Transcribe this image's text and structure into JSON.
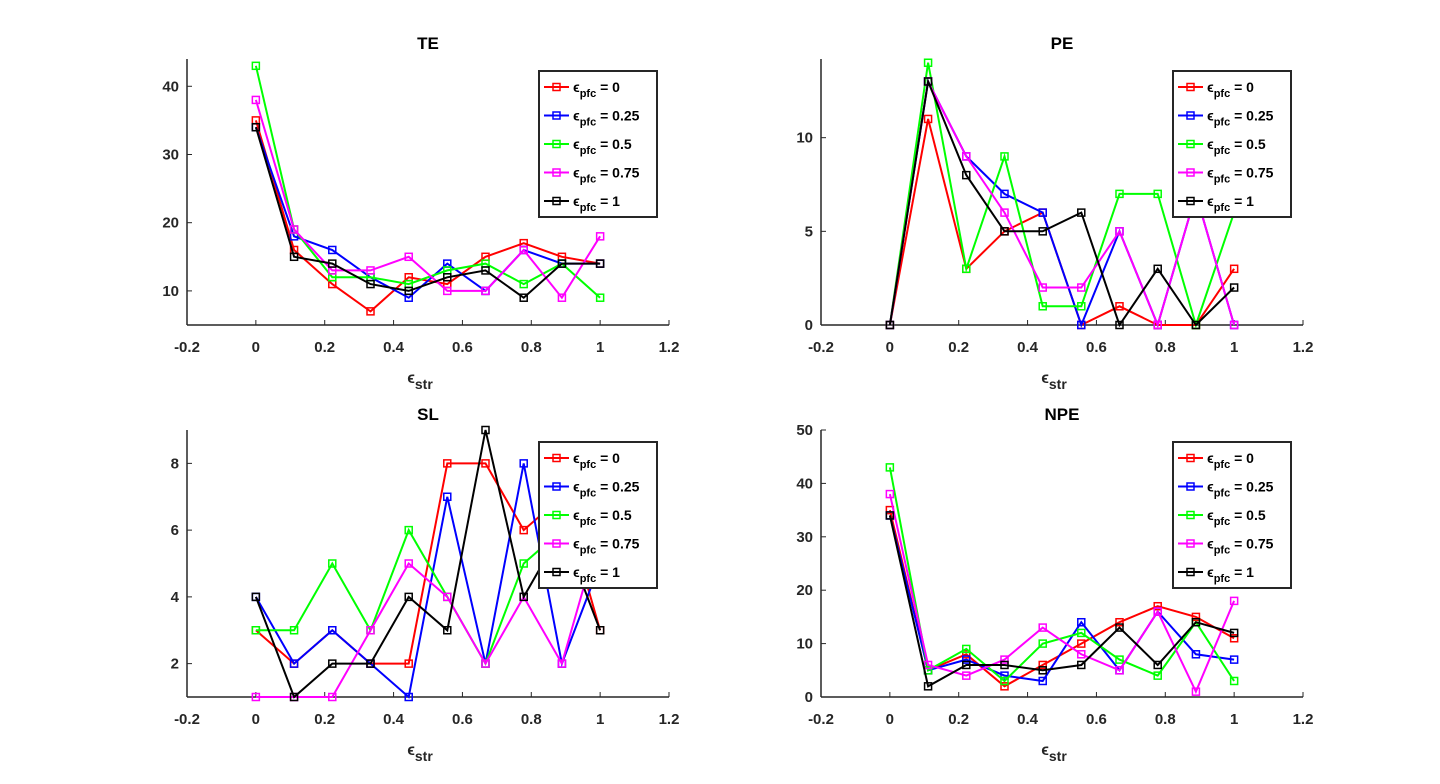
{
  "chart_data": [
    {
      "type": "line",
      "title": "TE",
      "xlabel_symbol": "ϵ",
      "xlabel_sub": "str",
      "xlim": [
        -0.2,
        1.2
      ],
      "ylim": [
        5,
        44
      ],
      "xticks": [
        "-0.2",
        "0",
        "0.2",
        "0.4",
        "0.6",
        "0.8",
        "1",
        "1.2"
      ],
      "xtick_values": [
        -0.2,
        0,
        0.2,
        0.4,
        0.6,
        0.8,
        1,
        1.2
      ],
      "yticks": [
        "10",
        "20",
        "30",
        "40"
      ],
      "ytick_values": [
        10,
        20,
        30,
        40
      ],
      "grid": false,
      "legend_position": "top-right",
      "x": [
        0,
        0.111,
        0.222,
        0.333,
        0.444,
        0.556,
        0.667,
        0.778,
        0.889,
        1
      ],
      "series": [
        {
          "name": "ϵpfc = 0",
          "symbol": "ϵ",
          "sub": "pfc",
          "suffix": " = 0",
          "color": "#ff0000",
          "values": [
            35,
            16,
            11,
            7,
            12,
            11,
            15,
            17,
            15,
            14
          ]
        },
        {
          "name": "ϵpfc = 0.25",
          "symbol": "ϵ",
          "sub": "pfc",
          "suffix": " = 0.25",
          "color": "#0000ff",
          "values": [
            34,
            18,
            16,
            12,
            9,
            14,
            10,
            16,
            14,
            14
          ]
        },
        {
          "name": "ϵpfc = 0.5",
          "symbol": "ϵ",
          "sub": "pfc",
          "suffix": " = 0.5",
          "color": "#00ff00",
          "values": [
            43,
            19,
            12,
            12,
            11,
            13,
            14,
            11,
            14,
            9
          ]
        },
        {
          "name": "ϵpfc = 0.75",
          "symbol": "ϵ",
          "sub": "pfc",
          "suffix": " = 0.75",
          "color": "#ff00ff",
          "values": [
            38,
            19,
            13,
            13,
            15,
            10,
            10,
            16,
            9,
            18
          ]
        },
        {
          "name": "ϵpfc = 1",
          "symbol": "ϵ",
          "sub": "pfc",
          "suffix": " = 1",
          "color": "#000000",
          "values": [
            34,
            15,
            14,
            11,
            10,
            12,
            13,
            9,
            14,
            14
          ]
        }
      ]
    },
    {
      "type": "line",
      "title": "PE",
      "xlabel_symbol": "ϵ",
      "xlabel_sub": "str",
      "xlim": [
        -0.2,
        1.2
      ],
      "ylim": [
        0,
        14.2
      ],
      "xticks": [
        "-0.2",
        "0",
        "0.2",
        "0.4",
        "0.6",
        "0.8",
        "1",
        "1.2"
      ],
      "xtick_values": [
        -0.2,
        0,
        0.2,
        0.4,
        0.6,
        0.8,
        1,
        1.2
      ],
      "yticks": [
        "0",
        "5",
        "10"
      ],
      "ytick_values": [
        0,
        5,
        10
      ],
      "grid": false,
      "legend_position": "top-right",
      "x": [
        0,
        0.111,
        0.222,
        0.333,
        0.444,
        0.556,
        0.667,
        0.778,
        0.889,
        1
      ],
      "series": [
        {
          "name": "ϵpfc = 0",
          "symbol": "ϵ",
          "sub": "pfc",
          "suffix": " = 0",
          "color": "#ff0000",
          "values": [
            0,
            11,
            3,
            5,
            6,
            0,
            1,
            0,
            0,
            3
          ]
        },
        {
          "name": "ϵpfc = 0.25",
          "symbol": "ϵ",
          "sub": "pfc",
          "suffix": " = 0.25",
          "color": "#0000ff",
          "values": [
            0,
            13,
            9,
            7,
            6,
            0,
            5,
            0,
            7,
            0
          ]
        },
        {
          "name": "ϵpfc = 0.5",
          "symbol": "ϵ",
          "sub": "pfc",
          "suffix": " = 0.5",
          "color": "#00ff00",
          "values": [
            0,
            14,
            3,
            9,
            1,
            1,
            7,
            7,
            0,
            6
          ]
        },
        {
          "name": "ϵpfc = 0.75",
          "symbol": "ϵ",
          "sub": "pfc",
          "suffix": " = 0.75",
          "color": "#ff00ff",
          "values": [
            0,
            13,
            9,
            6,
            2,
            2,
            5,
            0,
            7,
            0
          ]
        },
        {
          "name": "ϵpfc = 1",
          "symbol": "ϵ",
          "sub": "pfc",
          "suffix": " = 1",
          "color": "#000000",
          "values": [
            0,
            13,
            8,
            5,
            5,
            6,
            0,
            3,
            0,
            2
          ]
        }
      ]
    },
    {
      "type": "line",
      "title": "SL",
      "xlabel_symbol": "ϵ",
      "xlabel_sub": "str",
      "xlim": [
        -0.2,
        1.2
      ],
      "ylim": [
        1,
        9
      ],
      "xticks": [
        "-0.2",
        "0",
        "0.2",
        "0.4",
        "0.6",
        "0.8",
        "1",
        "1.2"
      ],
      "xtick_values": [
        -0.2,
        0,
        0.2,
        0.4,
        0.6,
        0.8,
        1,
        1.2
      ],
      "yticks": [
        "2",
        "4",
        "6",
        "8"
      ],
      "ytick_values": [
        2,
        4,
        6,
        8
      ],
      "grid": false,
      "legend_position": "top-right",
      "x": [
        0,
        0.111,
        0.222,
        0.333,
        0.444,
        0.556,
        0.667,
        0.778,
        0.889,
        1
      ],
      "series": [
        {
          "name": "ϵpfc = 0",
          "symbol": "ϵ",
          "sub": "pfc",
          "suffix": " = 0",
          "color": "#ff0000",
          "values": [
            3,
            2,
            3,
            2,
            2,
            8,
            8,
            6,
            7,
            3
          ]
        },
        {
          "name": "ϵpfc = 0.25",
          "symbol": "ϵ",
          "sub": "pfc",
          "suffix": " = 0.25",
          "color": "#0000ff",
          "values": [
            4,
            2,
            3,
            2,
            1,
            7,
            2,
            8,
            2,
            5
          ]
        },
        {
          "name": "ϵpfc = 0.5",
          "symbol": "ϵ",
          "sub": "pfc",
          "suffix": " = 0.5",
          "color": "#00ff00",
          "values": [
            3,
            3,
            5,
            3,
            6,
            4,
            2,
            5,
            6,
            5
          ]
        },
        {
          "name": "ϵpfc = 0.75",
          "symbol": "ϵ",
          "sub": "pfc",
          "suffix": " = 0.75",
          "color": "#ff00ff",
          "values": [
            1,
            1,
            1,
            3,
            5,
            4,
            2,
            4,
            2,
            6
          ]
        },
        {
          "name": "ϵpfc = 1",
          "symbol": "ϵ",
          "sub": "pfc",
          "suffix": " = 1",
          "color": "#000000",
          "values": [
            4,
            1,
            2,
            2,
            4,
            3,
            9,
            4,
            6,
            3
          ]
        }
      ]
    },
    {
      "type": "line",
      "title": "NPE",
      "xlabel_symbol": "ϵ",
      "xlabel_sub": "str",
      "xlim": [
        -0.2,
        1.2
      ],
      "ylim": [
        0,
        50
      ],
      "xticks": [
        "-0.2",
        "0",
        "0.2",
        "0.4",
        "0.6",
        "0.8",
        "1",
        "1.2"
      ],
      "xtick_values": [
        -0.2,
        0,
        0.2,
        0.4,
        0.6,
        0.8,
        1,
        1.2
      ],
      "yticks": [
        "0",
        "10",
        "20",
        "30",
        "40",
        "50"
      ],
      "ytick_values": [
        0,
        10,
        20,
        30,
        40,
        50
      ],
      "grid": false,
      "legend_position": "top-right",
      "x": [
        0,
        0.111,
        0.222,
        0.333,
        0.444,
        0.556,
        0.667,
        0.778,
        0.889,
        1
      ],
      "series": [
        {
          "name": "ϵpfc = 0",
          "symbol": "ϵ",
          "sub": "pfc",
          "suffix": " = 0",
          "color": "#ff0000",
          "values": [
            35,
            5,
            8,
            2,
            6,
            10,
            14,
            17,
            15,
            11
          ]
        },
        {
          "name": "ϵpfc = 0.25",
          "symbol": "ϵ",
          "sub": "pfc",
          "suffix": " = 0.25",
          "color": "#0000ff",
          "values": [
            34,
            5,
            7,
            4,
            3,
            14,
            5,
            16,
            8,
            7
          ]
        },
        {
          "name": "ϵpfc = 0.5",
          "symbol": "ϵ",
          "sub": "pfc",
          "suffix": " = 0.5",
          "color": "#00ff00",
          "values": [
            43,
            5,
            9,
            3,
            10,
            12,
            7,
            4,
            14,
            3
          ]
        },
        {
          "name": "ϵpfc = 0.75",
          "symbol": "ϵ",
          "sub": "pfc",
          "suffix": " = 0.75",
          "color": "#ff00ff",
          "values": [
            38,
            6,
            4,
            7,
            13,
            8,
            5,
            16,
            1,
            18
          ]
        },
        {
          "name": "ϵpfc = 1",
          "symbol": "ϵ",
          "sub": "pfc",
          "suffix": " = 1",
          "color": "#000000",
          "values": [
            34,
            2,
            6,
            6,
            5,
            6,
            13,
            6,
            14,
            12
          ]
        }
      ]
    }
  ]
}
